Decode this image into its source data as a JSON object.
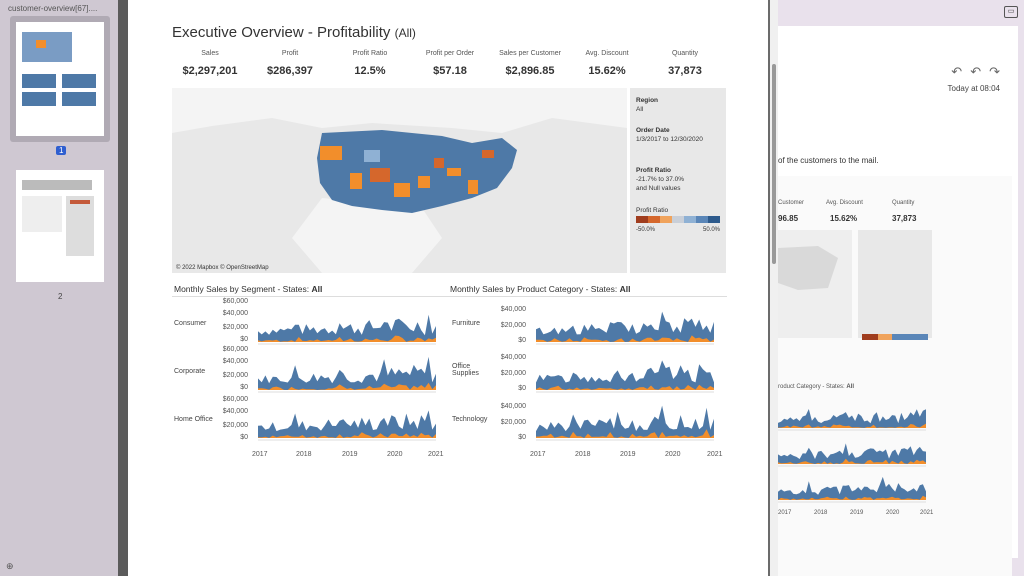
{
  "sidebar": {
    "file_title": "customer-overview[67]....",
    "pages": [
      {
        "number": "1"
      },
      {
        "number": "2"
      }
    ]
  },
  "dashboard": {
    "title": "Executive Overview - Profitability",
    "title_suffix": "(All)",
    "kpis": [
      {
        "label": "Sales",
        "value": "$2,297,201"
      },
      {
        "label": "Profit",
        "value": "$286,397"
      },
      {
        "label": "Profit Ratio",
        "value": "12.5%"
      },
      {
        "label": "Profit per Order",
        "value": "$57.18"
      },
      {
        "label": "Sales per Customer",
        "value": "$2,896.85"
      },
      {
        "label": "Avg. Discount",
        "value": "15.62%"
      },
      {
        "label": "Quantity",
        "value": "37,873"
      }
    ],
    "map_credit": "© 2022 Mapbox © OpenStreetMap",
    "filters": {
      "region_label": "Region",
      "region_value": "All",
      "order_date_label": "Order Date",
      "order_date_value": "1/3/2017 to 12/30/2020",
      "profit_ratio_label": "Profit Ratio",
      "profit_ratio_range": "-21.7% to 37.0%",
      "profit_ratio_null": "and Null values",
      "legend_label": "Profit Ratio",
      "legend_min": "-50.0%",
      "legend_max": "50.0%",
      "legend_colors": [
        "#a03d1e",
        "#d5672c",
        "#f0a35c",
        "#c9cfd8",
        "#8fb1d4",
        "#5a86b8",
        "#2d5a8c"
      ]
    },
    "segment_chart": {
      "title": "Monthly Sales by Segment - States:",
      "title_bold": "All",
      "rows": [
        "Consumer",
        "Corporate",
        "Home Office"
      ],
      "yticks": [
        "$60,000",
        "$40,000",
        "$20,000",
        "$0"
      ]
    },
    "category_chart": {
      "title": "Monthly Sales by Product Category - States:",
      "title_bold": "All",
      "rows": [
        "Furniture",
        "Office Supplies",
        "Technology"
      ],
      "yticks": [
        "$40,000",
        "$20,000",
        "$0"
      ]
    },
    "xticks": [
      "2017",
      "2018",
      "2019",
      "2020",
      "2021"
    ],
    "colors": {
      "sales": "#4e79a7",
      "profit": "#f28e2b"
    }
  },
  "mail": {
    "timestamp": "Today at 08:04",
    "body_text": "of the customers to the mail.",
    "embedded": {
      "kpi_labels": [
        "Customer",
        "Avg. Discount",
        "Quantity"
      ],
      "kpi_values": [
        "96.85",
        "15.62%",
        "37,873"
      ],
      "chart_title": "roduct Category - States:",
      "chart_title_bold": "All",
      "xticks": [
        "2017",
        "2018",
        "2019",
        "2020",
        "2021"
      ]
    }
  }
}
